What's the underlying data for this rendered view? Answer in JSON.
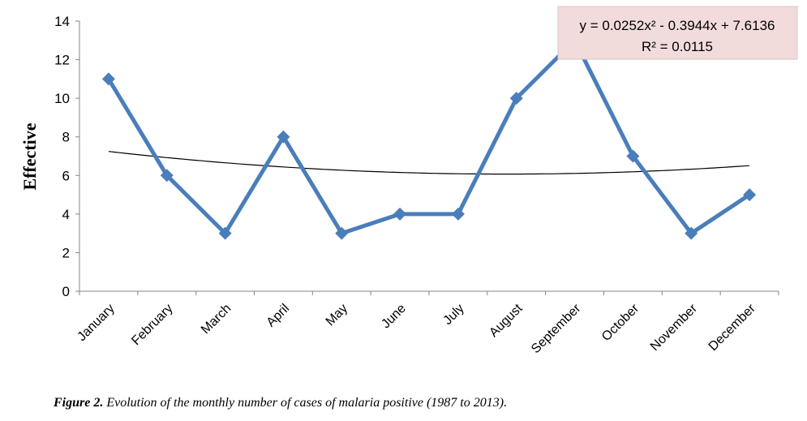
{
  "chart_data": {
    "type": "line",
    "y_label": "Effective",
    "categories": [
      "January",
      "February",
      "March",
      "April",
      "May",
      "June",
      "July",
      "August",
      "September",
      "October",
      "November",
      "December"
    ],
    "series": [
      {
        "color": "#4a7ebb",
        "values": [
          11,
          6,
          3,
          8,
          3,
          4,
          4,
          10,
          13,
          7,
          3,
          5
        ]
      }
    ],
    "ylim": [
      0,
      14
    ],
    "yticks": [
      0,
      2,
      4,
      6,
      8,
      10,
      12,
      14
    ],
    "grid": false,
    "trendline": {
      "color": "#000000",
      "coefficients": [
        0.0252,
        -0.3944,
        7.6136
      ],
      "equation": "y = 0.0252x² - 0.3944x + 7.6136",
      "r2": "R² = 0.0115"
    },
    "caption_label": "Figure 2.",
    "caption": "Evolution of the monthly number of cases of malaria positive (1987 to 2013)."
  }
}
